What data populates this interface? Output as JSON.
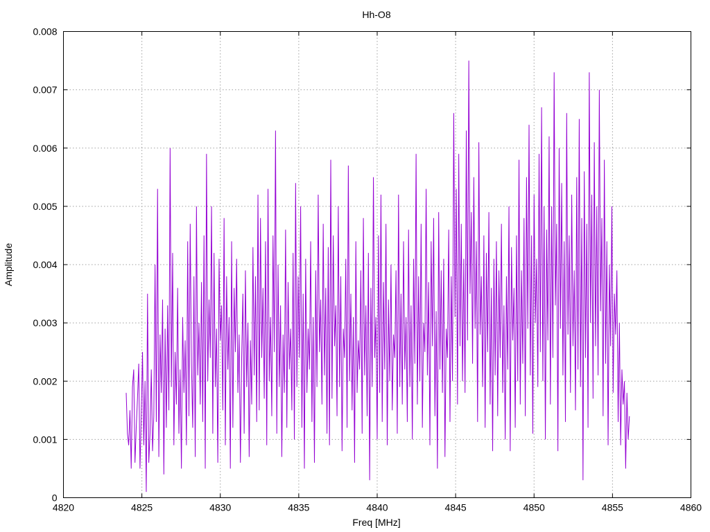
{
  "chart_data": {
    "type": "line",
    "title": "Hh-O8",
    "xlabel": "Freq [MHz]",
    "ylabel": "Amplitude",
    "xlim": [
      4820,
      4860
    ],
    "ylim": [
      0,
      0.008
    ],
    "x_ticks": [
      "4820",
      "4825",
      "4830",
      "4835",
      "4840",
      "4845",
      "4850",
      "4855",
      "4860"
    ],
    "y_ticks": [
      "0",
      "0.001",
      "0.002",
      "0.003",
      "0.004",
      "0.005",
      "0.006",
      "0.007",
      "0.008"
    ],
    "grid": true,
    "legend": "none",
    "series": [
      {
        "color": "#9400d3",
        "x_start": 4824.0,
        "x_step": 0.08,
        "values": [
          0.0018,
          0.0011,
          0.0009,
          0.0015,
          0.0005,
          0.0019,
          0.0022,
          0.0006,
          0.0012,
          0.0017,
          0.0023,
          0.0005,
          0.0014,
          0.0025,
          0.0009,
          0.002,
          0.0001,
          0.0035,
          0.0006,
          0.0011,
          0.0022,
          0.0008,
          0.0014,
          0.004,
          0.0013,
          0.0053,
          0.0007,
          0.0028,
          0.0018,
          0.0034,
          0.0004,
          0.0029,
          0.0012,
          0.0033,
          0.0015,
          0.006,
          0.0019,
          0.0042,
          0.0009,
          0.0025,
          0.0016,
          0.0036,
          0.0011,
          0.0022,
          0.0005,
          0.0031,
          0.0018,
          0.0027,
          0.0009,
          0.0044,
          0.0014,
          0.0047,
          0.0023,
          0.0012,
          0.0038,
          0.0007,
          0.005,
          0.0021,
          0.003,
          0.0016,
          0.0037,
          0.0013,
          0.0045,
          0.0005,
          0.0059,
          0.002,
          0.0034,
          0.0024,
          0.005,
          0.0011,
          0.0042,
          0.0019,
          0.0029,
          0.0006,
          0.0041,
          0.0027,
          0.0033,
          0.0015,
          0.0048,
          0.0009,
          0.0038,
          0.0022,
          0.0031,
          0.0005,
          0.0044,
          0.0012,
          0.0036,
          0.0025,
          0.0041,
          0.0018,
          0.0028,
          0.0006,
          0.0024,
          0.0035,
          0.0011,
          0.0039,
          0.0019,
          0.003,
          0.0007,
          0.0027,
          0.0016,
          0.0043,
          0.0021,
          0.0038,
          0.0013,
          0.0052,
          0.0015,
          0.0048,
          0.0024,
          0.0036,
          0.0017,
          0.0044,
          0.0009,
          0.0053,
          0.002,
          0.0031,
          0.0014,
          0.0045,
          0.0025,
          0.0063,
          0.0011,
          0.004,
          0.0019,
          0.0033,
          0.0007,
          0.0028,
          0.0018,
          0.0046,
          0.0012,
          0.0037,
          0.0022,
          0.0029,
          0.0015,
          0.0042,
          0.001,
          0.0054,
          0.0019,
          0.0038,
          0.0024,
          0.005,
          0.0012,
          0.0035,
          0.0005,
          0.0041,
          0.0018,
          0.0029,
          0.0022,
          0.0044,
          0.0013,
          0.0031,
          0.0006,
          0.0039,
          0.0019,
          0.0052,
          0.0025,
          0.0034,
          0.0016,
          0.0047,
          0.0021,
          0.0036,
          0.0011,
          0.0043,
          0.0009,
          0.0058,
          0.0017,
          0.0045,
          0.0026,
          0.0033,
          0.0014,
          0.005,
          0.0019,
          0.0038,
          0.0008,
          0.0029,
          0.0024,
          0.0041,
          0.0012,
          0.0057,
          0.002,
          0.0035,
          0.0015,
          0.0031,
          0.0006,
          0.0044,
          0.0018,
          0.0027,
          0.0022,
          0.0039,
          0.0011,
          0.0048,
          0.0021,
          0.0033,
          0.0014,
          0.0042,
          0.0003,
          0.0036,
          0.0019,
          0.0055,
          0.0024,
          0.0031,
          0.001,
          0.0045,
          0.0018,
          0.0052,
          0.0013,
          0.0037,
          0.0022,
          0.0047,
          0.0009,
          0.0034,
          0.002,
          0.004,
          0.0015,
          0.0028,
          0.0024,
          0.0039,
          0.0011,
          0.0052,
          0.0019,
          0.0035,
          0.0016,
          0.0044,
          0.0022,
          0.0031,
          0.0013,
          0.0046,
          0.0019,
          0.0033,
          0.001,
          0.0041,
          0.0023,
          0.0059,
          0.0016,
          0.0038,
          0.002,
          0.0047,
          0.0012,
          0.003,
          0.0025,
          0.0053,
          0.0021,
          0.0037,
          0.0009,
          0.0044,
          0.0026,
          0.0048,
          0.0014,
          0.0032,
          0.0005,
          0.0049,
          0.0022,
          0.0039,
          0.0018,
          0.0041,
          0.0007,
          0.0029,
          0.0024,
          0.0046,
          0.0013,
          0.0038,
          0.002,
          0.0066,
          0.0031,
          0.0053,
          0.0016,
          0.0059,
          0.0026,
          0.0047,
          0.002,
          0.0041,
          0.0018,
          0.0063,
          0.0027,
          0.0075,
          0.0035,
          0.0049,
          0.0023,
          0.0055,
          0.0029,
          0.0044,
          0.0013,
          0.0061,
          0.0028,
          0.0038,
          0.0019,
          0.0045,
          0.0012,
          0.0042,
          0.0025,
          0.0049,
          0.0016,
          0.0036,
          0.0008,
          0.0041,
          0.0021,
          0.0044,
          0.0014,
          0.0039,
          0.0024,
          0.0047,
          0.0018,
          0.0033,
          0.001,
          0.0038,
          0.0022,
          0.005,
          0.0008,
          0.0043,
          0.0027,
          0.0036,
          0.0012,
          0.0045,
          0.002,
          0.0058,
          0.0016,
          0.0039,
          0.0023,
          0.0048,
          0.0014,
          0.0055,
          0.0029,
          0.0064,
          0.0021,
          0.0045,
          0.0011,
          0.0052,
          0.003,
          0.0041,
          0.0019,
          0.0059,
          0.0025,
          0.0067,
          0.002,
          0.005,
          0.001,
          0.0046,
          0.0027,
          0.0062,
          0.0016,
          0.005,
          0.0024,
          0.0073,
          0.0033,
          0.0047,
          0.0008,
          0.006,
          0.0029,
          0.0054,
          0.0021,
          0.0044,
          0.0013,
          0.0066,
          0.0028,
          0.0045,
          0.0018,
          0.0052,
          0.0026,
          0.0039,
          0.0015,
          0.0055,
          0.0022,
          0.0065,
          0.0019,
          0.0048,
          0.0003,
          0.0056,
          0.0024,
          0.0047,
          0.0012,
          0.0073,
          0.003,
          0.0052,
          0.0017,
          0.0061,
          0.0026,
          0.005,
          0.0021,
          0.007,
          0.0032,
          0.0048,
          0.0014,
          0.0058,
          0.0023,
          0.0044,
          0.0009,
          0.004,
          0.0026,
          0.005,
          0.0018,
          0.0035,
          0.0028,
          0.0039,
          0.0013,
          0.003,
          0.0009,
          0.0022,
          0.0016,
          0.002,
          0.0005,
          0.0018,
          0.001,
          0.0014
        ]
      }
    ]
  }
}
